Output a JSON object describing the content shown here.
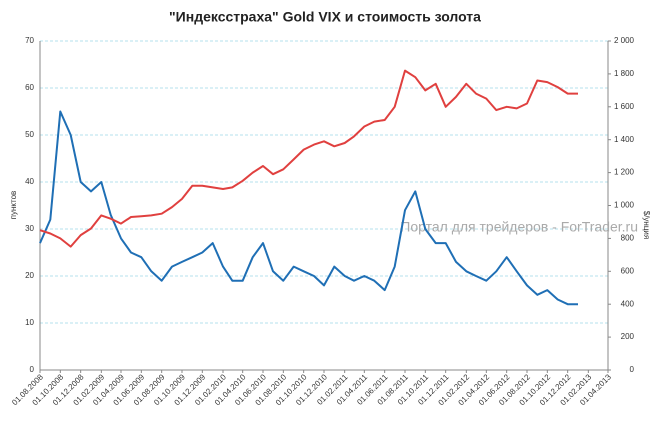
{
  "chart_data": {
    "type": "line",
    "title": "\"Индексстраха\" Gold VIX и стоимость золота",
    "y_label": "пунктов",
    "y2_label": "$/унция",
    "annotation": "Портал для трейдеров - ForTrader.ru",
    "x": [
      "01.08.2008",
      "01.09.2008",
      "01.10.2008",
      "01.11.2008",
      "01.12.2008",
      "01.01.2009",
      "01.02.2009",
      "01.03.2009",
      "01.04.2009",
      "01.05.2009",
      "01.06.2009",
      "01.07.2009",
      "01.08.2009",
      "01.09.2009",
      "01.10.2009",
      "01.11.2009",
      "01.12.2009",
      "01.01.2010",
      "01.02.2010",
      "01.03.2010",
      "01.04.2010",
      "01.05.2010",
      "01.06.2010",
      "01.07.2010",
      "01.08.2010",
      "01.09.2010",
      "01.10.2010",
      "01.11.2010",
      "01.12.2010",
      "01.01.2011",
      "01.02.2011",
      "01.03.2011",
      "01.04.2011",
      "01.05.2011",
      "01.06.2011",
      "01.07.2011",
      "01.08.2011",
      "01.09.2011",
      "01.10.2011",
      "01.11.2011",
      "01.12.2011",
      "01.01.2012",
      "01.02.2012",
      "01.03.2012",
      "01.04.2012",
      "01.05.2012",
      "01.06.2012",
      "01.07.2012",
      "01.08.2012",
      "01.09.2012",
      "01.10.2012",
      "01.11.2012",
      "01.12.2012",
      "01.01.2013"
    ],
    "series": [
      {
        "name": "Gold VIX",
        "color": "#1f6fb5",
        "axis": "y",
        "values": [
          27,
          32,
          55,
          50,
          40,
          38,
          40,
          33,
          28,
          25,
          24,
          21,
          19,
          22,
          23,
          24,
          25,
          27,
          22,
          19,
          19,
          24,
          27,
          21,
          19,
          22,
          21,
          20,
          18,
          22,
          20,
          19,
          20,
          19,
          17,
          22,
          34,
          38,
          30,
          27,
          27,
          23,
          21,
          20,
          19,
          21,
          24,
          21,
          18,
          16,
          17,
          15,
          14,
          14
        ]
      },
      {
        "name": "Золото",
        "color": "#e0403f",
        "axis": "y2",
        "values": [
          850,
          830,
          800,
          750,
          820,
          860,
          940,
          920,
          890,
          930,
          935,
          940,
          950,
          990,
          1040,
          1120,
          1120,
          1110,
          1100,
          1110,
          1150,
          1200,
          1240,
          1190,
          1220,
          1280,
          1340,
          1370,
          1390,
          1360,
          1380,
          1420,
          1480,
          1510,
          1520,
          1600,
          1820,
          1780,
          1700,
          1740,
          1600,
          1660,
          1740,
          1680,
          1650,
          1580,
          1600,
          1590,
          1620,
          1760,
          1750,
          1720,
          1680,
          1680
        ]
      }
    ],
    "xlim": [
      "01.08.2008",
      "01.04.2013"
    ],
    "xticks": [
      "01.08.2008",
      "01.10.2008",
      "01.12.2008",
      "01.02.2009",
      "01.04.2009",
      "01.06.2009",
      "01.08.2009",
      "01.10.2009",
      "01.12.2009",
      "01.02.2010",
      "01.04.2010",
      "01.06.2010",
      "01.08.2010",
      "01.10.2010",
      "01.12.2010",
      "01.02.2011",
      "01.04.2011",
      "01.06.2011",
      "01.08.2011",
      "01.10.2011",
      "01.12.2011",
      "01.02.2012",
      "01.04.2012",
      "01.06.2012",
      "01.08.2012",
      "01.10.2012",
      "01.12.2012",
      "01.02.2013",
      "01.04.2013"
    ],
    "ylim": [
      0,
      70
    ],
    "yticks": [
      0,
      10,
      20,
      30,
      40,
      50,
      60,
      70
    ],
    "y2lim": [
      0,
      2000
    ],
    "y2ticks": [
      0,
      200,
      400,
      600,
      800,
      {
        "value": 1000,
        "label": "1 000"
      },
      {
        "value": 1200,
        "label": "1 200"
      },
      {
        "value": 1400,
        "label": "1 400"
      },
      {
        "value": 1600,
        "label": "1 600"
      },
      {
        "value": 1800,
        "label": "1 800"
      },
      {
        "value": 2000,
        "label": "2 000"
      }
    ],
    "grid": true
  }
}
